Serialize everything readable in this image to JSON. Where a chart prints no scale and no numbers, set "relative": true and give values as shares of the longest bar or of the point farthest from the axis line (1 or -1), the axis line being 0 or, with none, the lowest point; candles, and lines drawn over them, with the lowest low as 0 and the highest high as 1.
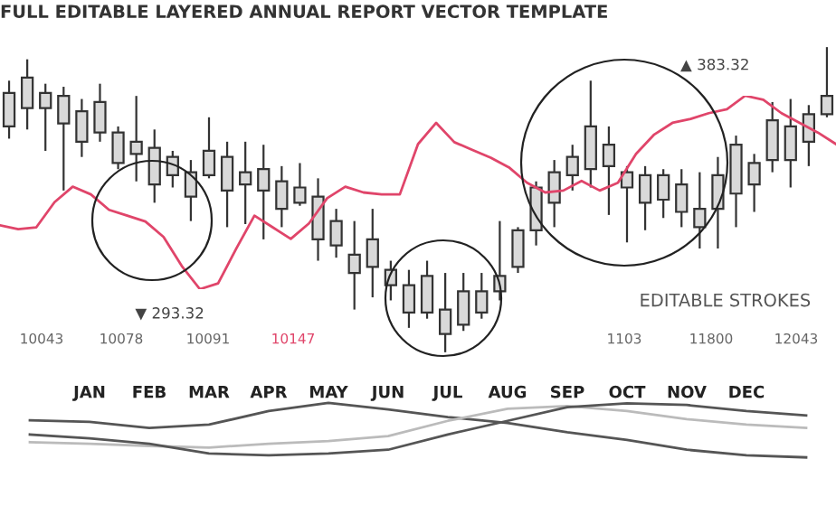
{
  "chart_data": [
    {
      "type": "candlestick",
      "title": "FULL EDITABLE LAYERED ANNUAL REPORT VECTOR TEMPLATE",
      "relative": true,
      "tick_labels": false,
      "categories": [
        null,
        null,
        null,
        null,
        null,
        null,
        null,
        null,
        null,
        null,
        null,
        null,
        null,
        null,
        null,
        null,
        null,
        null,
        null,
        null,
        null,
        null,
        null,
        null,
        null,
        null,
        null,
        null,
        null,
        null,
        null,
        null,
        null,
        null,
        null,
        null,
        null,
        null,
        null,
        null,
        null,
        null,
        null,
        null,
        null,
        null
      ],
      "ohlc": [
        [
          0.74,
          0.89,
          0.7,
          0.85
        ],
        [
          0.8,
          0.96,
          0.73,
          0.9
        ],
        [
          0.8,
          0.88,
          0.66,
          0.85
        ],
        [
          0.75,
          0.87,
          0.53,
          0.84
        ],
        [
          0.69,
          0.83,
          0.64,
          0.79
        ],
        [
          0.72,
          0.88,
          0.69,
          0.82
        ],
        [
          0.62,
          0.74,
          0.6,
          0.72
        ],
        [
          0.65,
          0.84,
          0.56,
          0.69
        ],
        [
          0.55,
          0.73,
          0.49,
          0.67
        ],
        [
          0.58,
          0.66,
          0.54,
          0.64
        ],
        [
          0.51,
          0.63,
          0.43,
          0.59
        ],
        [
          0.58,
          0.77,
          0.57,
          0.66
        ],
        [
          0.53,
          0.69,
          0.41,
          0.64
        ],
        [
          0.55,
          0.69,
          0.42,
          0.59
        ],
        [
          0.53,
          0.68,
          0.37,
          0.6
        ],
        [
          0.47,
          0.61,
          0.41,
          0.56
        ],
        [
          0.49,
          0.62,
          0.48,
          0.54
        ],
        [
          0.37,
          0.57,
          0.3,
          0.51
        ],
        [
          0.35,
          0.47,
          0.31,
          0.43
        ],
        [
          0.26,
          0.43,
          0.14,
          0.32
        ],
        [
          0.28,
          0.47,
          0.18,
          0.37
        ],
        [
          0.22,
          0.3,
          0.17,
          0.27
        ],
        [
          0.13,
          0.27,
          0.08,
          0.22
        ],
        [
          0.13,
          0.3,
          0.11,
          0.25
        ],
        [
          0.06,
          0.26,
          0.0,
          0.14
        ],
        [
          0.09,
          0.26,
          0.07,
          0.2
        ],
        [
          0.13,
          0.26,
          0.11,
          0.2
        ],
        [
          0.2,
          0.43,
          0.17,
          0.25
        ],
        [
          0.28,
          0.41,
          0.26,
          0.4
        ],
        [
          0.4,
          0.56,
          0.35,
          0.54
        ],
        [
          0.49,
          0.63,
          0.41,
          0.59
        ],
        [
          0.58,
          0.68,
          0.53,
          0.64
        ],
        [
          0.6,
          0.89,
          0.54,
          0.74
        ],
        [
          0.61,
          0.74,
          0.45,
          0.68
        ],
        [
          0.54,
          0.61,
          0.36,
          0.59
        ],
        [
          0.49,
          0.61,
          0.4,
          0.58
        ],
        [
          0.5,
          0.6,
          0.44,
          0.58
        ],
        [
          0.46,
          0.6,
          0.41,
          0.55
        ],
        [
          0.41,
          0.59,
          0.34,
          0.47
        ],
        [
          0.47,
          0.64,
          0.34,
          0.58
        ],
        [
          0.52,
          0.71,
          0.41,
          0.68
        ],
        [
          0.55,
          0.65,
          0.46,
          0.62
        ],
        [
          0.63,
          0.82,
          0.59,
          0.76
        ],
        [
          0.63,
          0.83,
          0.54,
          0.74
        ],
        [
          0.69,
          0.81,
          0.61,
          0.78
        ],
        [
          0.78,
          1,
          0.77,
          0.84
        ]
      ],
      "annotations": [
        "EDITABLE STROKES",
        "10043",
        "10078",
        "10091",
        "10147",
        "1103",
        "11800",
        "12043"
      ]
    },
    {
      "type": "line",
      "relative": true,
      "tick_labels": false,
      "categories": [
        null,
        null,
        null,
        null,
        null,
        null,
        null,
        null,
        null,
        null,
        null,
        null,
        null,
        null,
        null,
        null,
        null,
        null,
        null,
        null,
        null,
        null,
        null,
        null,
        null,
        null,
        null,
        null,
        null,
        null,
        null,
        null,
        null,
        null,
        null,
        null,
        null,
        null,
        null,
        null,
        null,
        null,
        null,
        null,
        null,
        null,
        null
      ],
      "series": [
        {
          "color": "#e0456a",
          "values": [
            0.33,
            0.31,
            0.32,
            0.45,
            0.53,
            0.49,
            0.41,
            0.38,
            0.35,
            0.27,
            0.12,
            0,
            0.03,
            0.21,
            0.38,
            0.32,
            0.26,
            0.34,
            0.47,
            0.53,
            0.5,
            0.49,
            0.49,
            0.75,
            0.86,
            0.76,
            0.72,
            0.68,
            0.63,
            0.55,
            0.5,
            0.51,
            0.56,
            0.51,
            0.55,
            0.7,
            0.8,
            0.86,
            0.88,
            0.91,
            0.93,
            1,
            0.98,
            0.91,
            0.86,
            0.81,
            0.75
          ]
        }
      ],
      "annotations": [
        "▲ 383.32",
        "▼ 293.32"
      ]
    },
    {
      "type": "line",
      "relative": true,
      "tick_labels": "x",
      "categories": [
        null,
        "JAN",
        "FEB",
        "MAR",
        "APR",
        "MAY",
        "JUN",
        "JUL",
        "AUG",
        "SEP",
        "OCT",
        "NOV",
        "DEC",
        null
      ],
      "series": [
        {
          "color": "#555555",
          "values": [
            0.68,
            0.65,
            0.54,
            0.6,
            0.85,
            1,
            0.88,
            0.74,
            0.63,
            0.46,
            0.32,
            0.14,
            0.04,
            0
          ]
        },
        {
          "color": "#bbbbbb",
          "values": [
            0.28,
            0.25,
            0.21,
            0.18,
            0.25,
            0.3,
            0.39,
            0.67,
            0.89,
            0.94,
            0.85,
            0.7,
            0.6,
            0.54
          ]
        },
        {
          "color": "#555555",
          "values": [
            0.42,
            0.35,
            0.25,
            0.07,
            0.04,
            0.07,
            0.14,
            0.42,
            0.67,
            0.92,
            0.99,
            0.96,
            0.85,
            0.77
          ]
        }
      ]
    }
  ]
}
